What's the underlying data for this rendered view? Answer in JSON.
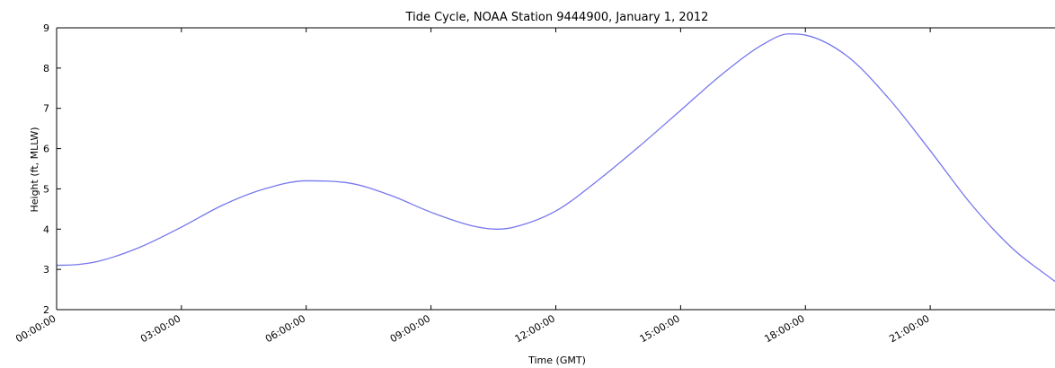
{
  "chart_data": {
    "type": "line",
    "title": "Tide Cycle, NOAA Station 9444900, January 1, 2012",
    "xlabel": "Time (GMT)",
    "ylabel": "Height (ft, MLLW)",
    "xlim": [
      "00:00:00",
      "24:00:00"
    ],
    "ylim": [
      2,
      9
    ],
    "xticks": [
      "00:00:00",
      "03:00:00",
      "06:00:00",
      "09:00:00",
      "12:00:00",
      "15:00:00",
      "18:00:00",
      "21:00:00"
    ],
    "yticks": [
      2,
      3,
      4,
      5,
      6,
      7,
      8,
      9
    ],
    "grid": false,
    "line_color": "#7777ee",
    "series": [
      {
        "x": [
          "00:00:00",
          "00:30:00",
          "01:00:00",
          "02:00:00",
          "03:00:00",
          "04:00:00",
          "05:00:00",
          "06:00:00",
          "07:00:00",
          "08:00:00",
          "09:00:00",
          "10:00:00",
          "10:36:00",
          "11:00:00",
          "12:00:00",
          "13:00:00",
          "14:00:00",
          "15:00:00",
          "16:00:00",
          "17:00:00",
          "17:36:00",
          "18:00:00",
          "19:00:00",
          "20:00:00",
          "21:00:00",
          "22:00:00",
          "23:00:00",
          "24:00:00"
        ],
        "y": [
          3.1,
          3.12,
          3.2,
          3.55,
          4.05,
          4.6,
          5.0,
          5.2,
          5.15,
          4.85,
          4.42,
          4.08,
          4.0,
          4.05,
          4.45,
          5.2,
          6.05,
          6.95,
          7.85,
          8.6,
          8.85,
          8.82,
          8.3,
          7.25,
          5.95,
          4.6,
          3.5,
          2.7
        ]
      }
    ]
  }
}
